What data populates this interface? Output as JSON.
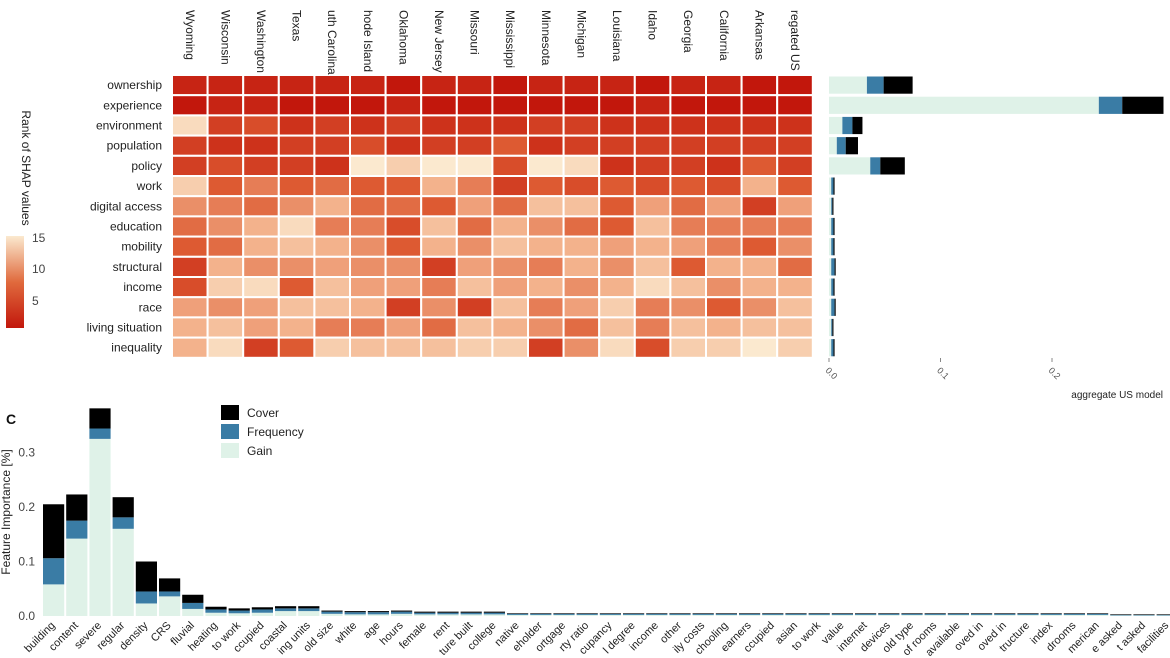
{
  "heatmap": {
    "states": [
      "Wyoming",
      "Wisconsin",
      "Washington",
      "Texas",
      "uth Carolina",
      "hode Island",
      "Oklahoma",
      "New Jersey",
      "Missouri",
      "Mississippi",
      "Minnesota",
      "Michigan",
      "Louisiana",
      "Idaho",
      "Georgia",
      "California",
      "Arkansas",
      "regated US"
    ],
    "features": [
      "ownership",
      "experience",
      "environment",
      "population",
      "policy",
      "work",
      "digital access",
      "education",
      "mobility",
      "structural",
      "income",
      "race",
      "living situation",
      "inequality"
    ],
    "legend_title": "Rank of SHAP values",
    "legend_ticks": [
      "15",
      "10",
      "5"
    ]
  },
  "aggregate_panel": {
    "xlabel": "aggregate US model",
    "ticks": [
      "0.0",
      "0.1",
      "0.2"
    ]
  },
  "panel_c": {
    "label": "C",
    "ylabel": "Feature Importance [%]",
    "yticks": [
      "0.0",
      "0.1",
      "0.2",
      "0.3"
    ],
    "legend": [
      "Cover",
      "Frequency",
      "Gain"
    ]
  },
  "colors": {
    "cover": "#000000",
    "frequency": "#3a7ca5",
    "gain": "#dff2e8",
    "rank_low": "#c2170c",
    "rank_high": "#fbe9cf"
  },
  "chart_data": [
    {
      "type": "heatmap",
      "x": [
        "Wyoming",
        "Wisconsin",
        "Washington",
        "Texas",
        "uth Carolina",
        "hode Island",
        "Oklahoma",
        "New Jersey",
        "Missouri",
        "Mississippi",
        "Minnesota",
        "Michigan",
        "Louisiana",
        "Idaho",
        "Georgia",
        "California",
        "Arkansas",
        "regated US"
      ],
      "y": [
        "ownership",
        "experience",
        "environment",
        "population",
        "policy",
        "work",
        "digital access",
        "education",
        "mobility",
        "structural",
        "income",
        "race",
        "living situation",
        "inequality"
      ],
      "values": [
        [
          2,
          2,
          2,
          2,
          2,
          2,
          1,
          2,
          2,
          1,
          2,
          2,
          2,
          1,
          2,
          2,
          1,
          1
        ],
        [
          1,
          2,
          2,
          1,
          1,
          1,
          2,
          1,
          1,
          1,
          1,
          1,
          1,
          2,
          1,
          1,
          1,
          1
        ],
        [
          14,
          4,
          5,
          3,
          4,
          3,
          4,
          3,
          3,
          3,
          4,
          4,
          3,
          3,
          3,
          3,
          3,
          3
        ],
        [
          4,
          3,
          3,
          4,
          4,
          5,
          3,
          4,
          4,
          6,
          3,
          4,
          4,
          4,
          4,
          4,
          4,
          4
        ],
        [
          4,
          5,
          4,
          4,
          3,
          15,
          13,
          15,
          15,
          5,
          15,
          14,
          3,
          4,
          4,
          3,
          6,
          4
        ],
        [
          13,
          6,
          8,
          6,
          7,
          6,
          6,
          11,
          8,
          4,
          6,
          5,
          6,
          5,
          6,
          5,
          11,
          6
        ],
        [
          9,
          8,
          7,
          9,
          11,
          7,
          7,
          6,
          10,
          7,
          12,
          12,
          6,
          10,
          7,
          10,
          4,
          10
        ],
        [
          7,
          9,
          11,
          14,
          8,
          8,
          5,
          12,
          7,
          11,
          9,
          7,
          6,
          12,
          8,
          8,
          8,
          8
        ],
        [
          6,
          7,
          11,
          12,
          11,
          9,
          6,
          11,
          9,
          12,
          11,
          11,
          10,
          11,
          10,
          8,
          6,
          9
        ],
        [
          4,
          11,
          9,
          9,
          10,
          9,
          9,
          4,
          10,
          9,
          8,
          11,
          9,
          12,
          6,
          11,
          11,
          7
        ],
        [
          5,
          13,
          14,
          6,
          12,
          10,
          10,
          8,
          12,
          10,
          11,
          9,
          11,
          14,
          12,
          9,
          11,
          11
        ],
        [
          10,
          9,
          10,
          12,
          12,
          11,
          4,
          9,
          4,
          12,
          8,
          10,
          13,
          8,
          9,
          6,
          9,
          12
        ],
        [
          11,
          12,
          10,
          11,
          8,
          8,
          10,
          7,
          12,
          11,
          9,
          7,
          12,
          8,
          12,
          11,
          12,
          12
        ],
        [
          11,
          14,
          4,
          6,
          13,
          12,
          12,
          12,
          13,
          13,
          4,
          9,
          14,
          5,
          13,
          13,
          15,
          13
        ]
      ],
      "colorbar": {
        "title": "Rank of SHAP values",
        "ticks": [
          15,
          10,
          5
        ]
      }
    },
    {
      "type": "bar",
      "orientation": "horizontal",
      "stacked": true,
      "title": "aggregate US model",
      "categories": [
        "ownership",
        "experience",
        "environment",
        "population",
        "policy",
        "work",
        "digital access",
        "education",
        "mobility",
        "structural",
        "income",
        "race",
        "living situation",
        "inequality"
      ],
      "series": [
        {
          "name": "Gain",
          "values": [
            0.034,
            0.242,
            0.012,
            0.007,
            0.037,
            0.002,
            0.002,
            0.002,
            0.002,
            0.002,
            0.002,
            0.002,
            0.002,
            0.002
          ]
        },
        {
          "name": "Frequency",
          "values": [
            0.015,
            0.021,
            0.009,
            0.008,
            0.009,
            0.002,
            0.001,
            0.002,
            0.002,
            0.003,
            0.002,
            0.003,
            0.001,
            0.002
          ]
        },
        {
          "name": "Cover",
          "values": [
            0.026,
            0.037,
            0.009,
            0.011,
            0.022,
            0.001,
            0.001,
            0.001,
            0.001,
            0.001,
            0.001,
            0.001,
            0.001,
            0.001
          ]
        }
      ],
      "xlim": [
        0,
        0.3
      ],
      "xticks": [
        0.0,
        0.1,
        0.2
      ]
    },
    {
      "type": "bar",
      "stacked": true,
      "title": "C",
      "ylabel": "Feature Importance [%]",
      "ylim": [
        0,
        0.38
      ],
      "yticks": [
        0.0,
        0.1,
        0.2,
        0.3
      ],
      "categories": [
        "building",
        "content",
        "severe",
        "regular",
        "density",
        "CRS",
        "fluvial",
        "heating",
        "to work",
        "ccupied",
        "coastal",
        "ing units",
        "old size",
        "white",
        "age",
        "hours",
        "female",
        "rent",
        "ture built",
        "college",
        "native",
        "eholder",
        "ortgage",
        "rty ratio",
        "cupancy",
        "l degree",
        "income",
        "other",
        "ily costs",
        "chooling",
        "earners",
        "ccupied",
        "asian",
        "to work",
        "value",
        "internet",
        "devices",
        "old type",
        "of rooms",
        "available",
        "oved in",
        "oved in",
        "tructure",
        "index",
        "drooms",
        "merican",
        "e asked",
        "t asked",
        "facilities"
      ],
      "series": [
        {
          "name": "Gain",
          "values": [
            0.058,
            0.142,
            0.325,
            0.16,
            0.023,
            0.036,
            0.013,
            0.006,
            0.005,
            0.006,
            0.009,
            0.009,
            0.004,
            0.003,
            0.003,
            0.004,
            0.003,
            0.003,
            0.003,
            0.003,
            0.002,
            0.002,
            0.002,
            0.002,
            0.002,
            0.002,
            0.002,
            0.002,
            0.002,
            0.002,
            0.002,
            0.002,
            0.002,
            0.002,
            0.002,
            0.002,
            0.002,
            0.002,
            0.002,
            0.002,
            0.002,
            0.002,
            0.002,
            0.002,
            0.002,
            0.002,
            0.001,
            0.001,
            0.001
          ]
        },
        {
          "name": "Frequency",
          "values": [
            0.048,
            0.033,
            0.019,
            0.021,
            0.022,
            0.009,
            0.011,
            0.006,
            0.005,
            0.006,
            0.005,
            0.005,
            0.004,
            0.004,
            0.004,
            0.004,
            0.003,
            0.003,
            0.003,
            0.003,
            0.002,
            0.002,
            0.002,
            0.002,
            0.002,
            0.002,
            0.002,
            0.002,
            0.002,
            0.002,
            0.002,
            0.002,
            0.002,
            0.002,
            0.002,
            0.002,
            0.002,
            0.002,
            0.002,
            0.002,
            0.002,
            0.002,
            0.002,
            0.002,
            0.002,
            0.002,
            0.001,
            0.001,
            0.001
          ]
        },
        {
          "name": "Cover",
          "values": [
            0.099,
            0.048,
            0.037,
            0.037,
            0.055,
            0.024,
            0.015,
            0.005,
            0.004,
            0.004,
            0.004,
            0.004,
            0.002,
            0.002,
            0.002,
            0.002,
            0.002,
            0.002,
            0.002,
            0.002,
            0.001,
            0.001,
            0.001,
            0.001,
            0.001,
            0.001,
            0.001,
            0.001,
            0.001,
            0.001,
            0.001,
            0.001,
            0.001,
            0.001,
            0.001,
            0.001,
            0.001,
            0.001,
            0.001,
            0.001,
            0.001,
            0.001,
            0.001,
            0.001,
            0.001,
            0.001,
            0.001,
            0.001,
            0.001
          ]
        }
      ]
    }
  ]
}
